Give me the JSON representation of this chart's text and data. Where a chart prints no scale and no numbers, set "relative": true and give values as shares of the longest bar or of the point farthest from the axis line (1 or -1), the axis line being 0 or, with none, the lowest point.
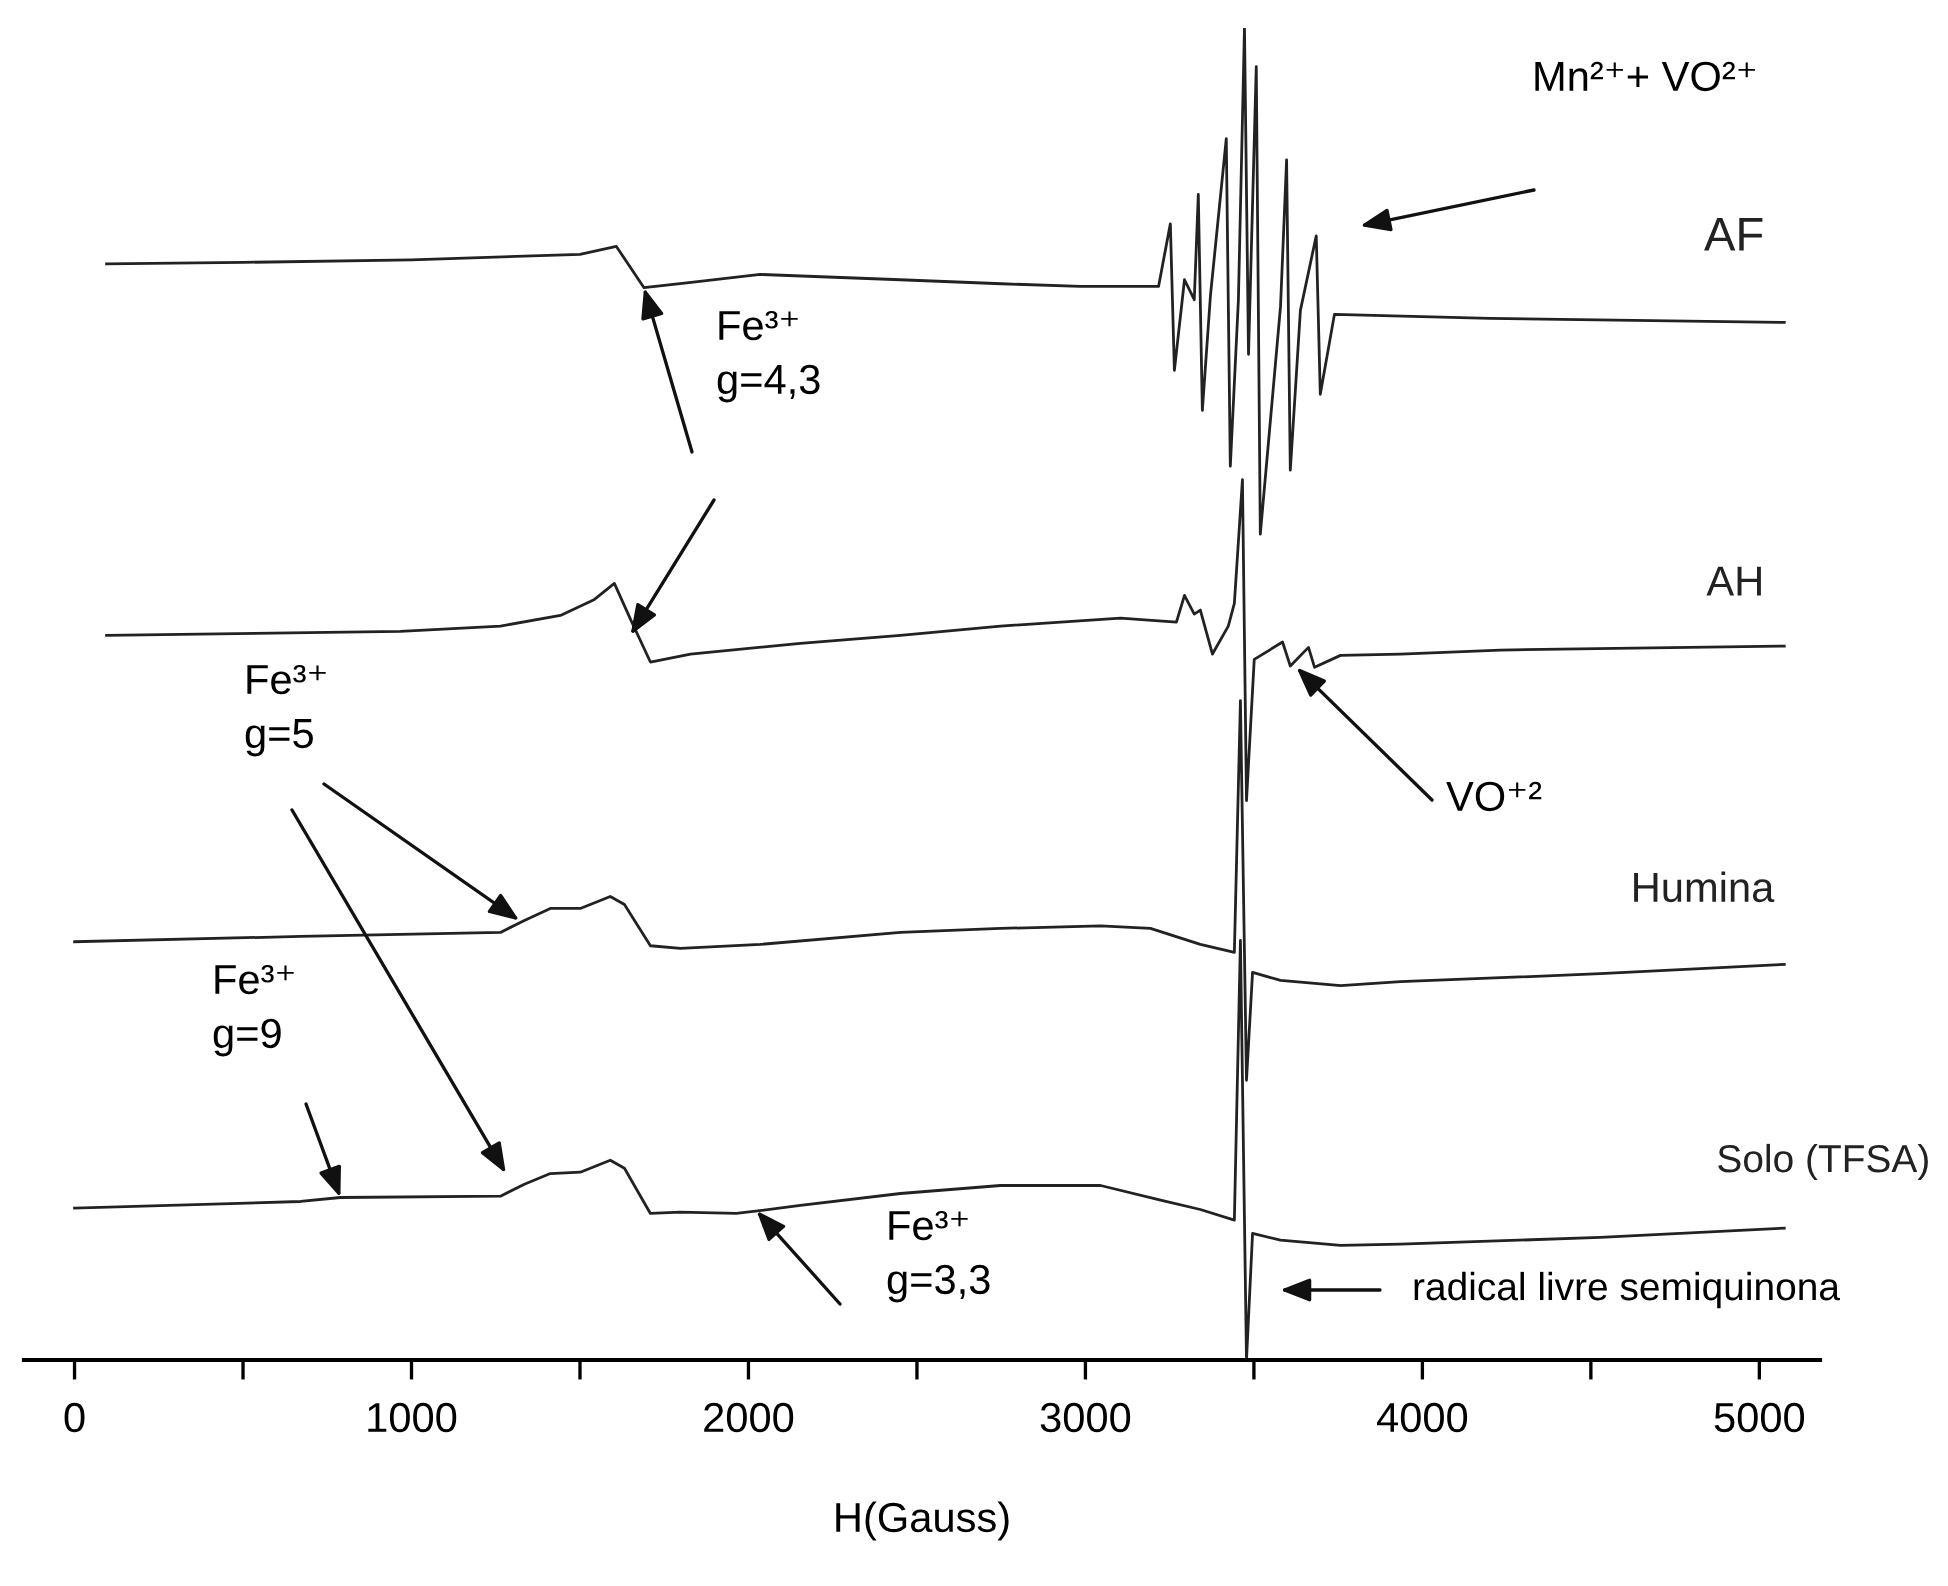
{
  "chart_data": {
    "type": "line",
    "xlabel": "H(Gauss)",
    "relative": true,
    "xlim": [
      -150,
      5180
    ],
    "xticks": [
      0,
      {
        "value": 500,
        "label": null
      },
      1000,
      {
        "value": 1500,
        "label": null
      },
      2000,
      {
        "value": 2500,
        "label": null
      },
      3000,
      {
        "value": 3500,
        "label": null
      },
      4000,
      {
        "value": 4500,
        "label": null
      },
      5000
    ],
    "grid": false,
    "legend": false,
    "marker": "none",
    "line_style": "solid",
    "series": [
      {
        "name": "AF",
        "color": "#222222",
        "x": [
          95,
          500,
          1000,
          1500,
          1608,
          1690,
          1830,
          2035,
          2450,
          2750,
          2985,
          3217,
          3252,
          3264,
          3294,
          3323,
          3335,
          3347,
          3371,
          3418,
          3430,
          3454,
          3472,
          3484,
          3507,
          3519,
          3579,
          3597,
          3608,
          3638,
          3685,
          3697,
          3739,
          4200,
          5074
        ],
        "values": [
          0.823,
          0.824,
          0.826,
          0.83,
          0.836,
          0.805,
          0.809,
          0.815,
          0.811,
          0.808,
          0.806,
          0.806,
          0.853,
          0.743,
          0.811,
          0.796,
          0.875,
          0.713,
          0.799,
          0.917,
          0.671,
          0.796,
          1.0,
          0.755,
          0.971,
          0.62,
          0.791,
          0.901,
          0.668,
          0.788,
          0.844,
          0.725,
          0.785,
          0.782,
          0.779
        ]
      },
      {
        "name": "AH",
        "color": "#222222",
        "x": [
          95,
          967,
          1264,
          1442,
          1543,
          1602,
          1650,
          1709,
          1828,
          2154,
          2451,
          2748,
          3104,
          3270,
          3294,
          3323,
          3341,
          3377,
          3424,
          3442,
          3466,
          3478,
          3501,
          3585,
          3608,
          3662,
          3680,
          3757,
          3935,
          4231,
          5074
        ],
        "values": [
          0.544,
          0.547,
          0.551,
          0.559,
          0.571,
          0.583,
          0.556,
          0.524,
          0.53,
          0.538,
          0.544,
          0.551,
          0.557,
          0.554,
          0.574,
          0.56,
          0.563,
          0.53,
          0.551,
          0.568,
          0.661,
          0.42,
          0.526,
          0.539,
          0.521,
          0.535,
          0.52,
          0.529,
          0.53,
          0.533,
          0.536
        ]
      },
      {
        "name": "Humina",
        "color": "#222222",
        "x": [
          0,
          671,
          1264,
          1335,
          1412,
          1501,
          1590,
          1632,
          1709,
          1798,
          2035,
          2451,
          2748,
          3045,
          3193,
          3341,
          3442,
          3460,
          3478,
          3496,
          3579,
          3757,
          3935,
          4528,
          5074
        ],
        "values": [
          0.314,
          0.318,
          0.321,
          0.33,
          0.339,
          0.339,
          0.348,
          0.342,
          0.311,
          0.309,
          0.312,
          0.321,
          0.324,
          0.326,
          0.324,
          0.312,
          0.306,
          0.495,
          0.21,
          0.291,
          0.285,
          0.281,
          0.284,
          0.29,
          0.297
        ]
      },
      {
        "name": "Solo (TFSA)",
        "color": "#222222",
        "x": [
          0,
          671,
          789,
          1264,
          1335,
          1412,
          1501,
          1590,
          1632,
          1709,
          1798,
          1964,
          2154,
          2451,
          2748,
          3045,
          3223,
          3341,
          3442,
          3460,
          3478,
          3496,
          3579,
          3757,
          3935,
          4528,
          5074
        ],
        "values": [
          0.114,
          0.119,
          0.122,
          0.123,
          0.132,
          0.14,
          0.141,
          0.15,
          0.144,
          0.11,
          0.111,
          0.11,
          0.116,
          0.125,
          0.131,
          0.131,
          0.12,
          0.113,
          0.105,
          0.315,
          0.0,
          0.095,
          0.09,
          0.086,
          0.087,
          0.092,
          0.099
        ]
      }
    ],
    "annotations": [
      {
        "text": "Fe³⁺\ng=4,3",
        "x": 1690,
        "y": 0.805
      },
      "Mn²⁺+ VO²⁺",
      {
        "text": "VO⁺²",
        "x": 3626,
        "y": 0.52
      },
      {
        "text": "Fe³⁺\ng=5",
        "x": 1320,
        "y": 0.33
      },
      {
        "text": "Fe³⁺\ng=9",
        "x": 789,
        "y": 0.122
      },
      {
        "text": "Fe³⁺\ng=3,3",
        "x": 2024,
        "y": 0.112
      },
      "radical livre semiquinona"
    ]
  }
}
